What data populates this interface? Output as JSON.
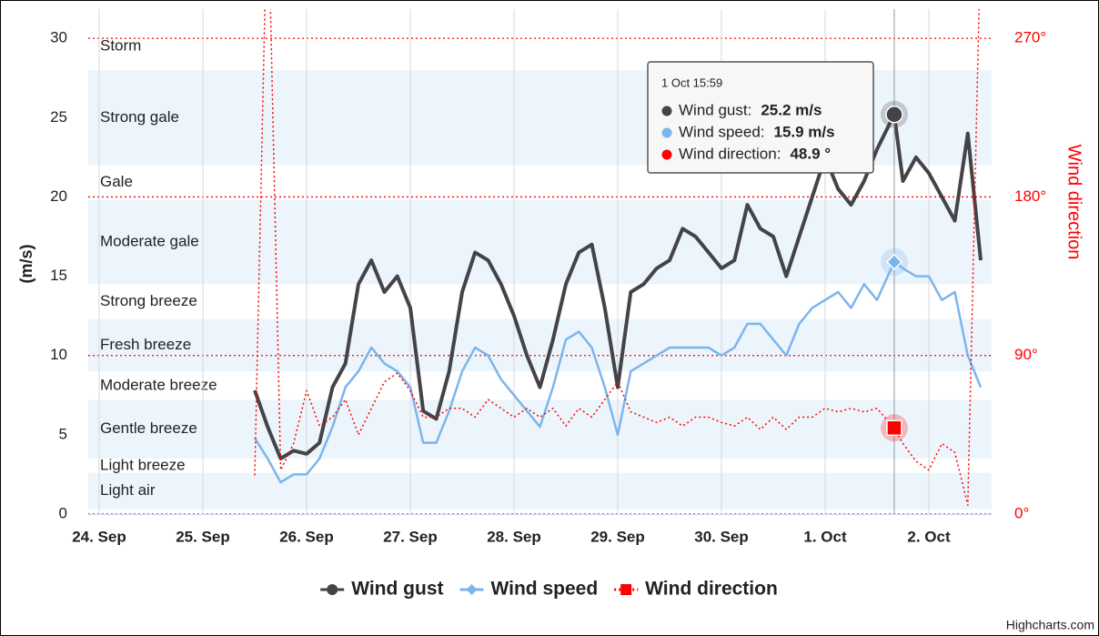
{
  "chart_data": {
    "type": "line",
    "y_title": "(m/s)",
    "y2_title": "Wind direction",
    "credits": "Highcharts.com",
    "xlim": [
      -0.105,
      8.605
    ],
    "xticks": [
      {
        "value": 0,
        "label": "24. Sep"
      },
      {
        "value": 1,
        "label": "25. Sep"
      },
      {
        "value": 2,
        "label": "26. Sep"
      },
      {
        "value": 3,
        "label": "27. Sep"
      },
      {
        "value": 4,
        "label": "28. Sep"
      },
      {
        "value": 5,
        "label": "29. Sep"
      },
      {
        "value": 6,
        "label": "30. Sep"
      },
      {
        "value": 7,
        "label": "1. Oct"
      },
      {
        "value": 8,
        "label": "2. Oct"
      }
    ],
    "ylim": [
      0,
      31.5
    ],
    "yticks": [
      0,
      5,
      10,
      15,
      20,
      25,
      30
    ],
    "y2lim": [
      0,
      283.5
    ],
    "y2ticks": [
      {
        "value": 0,
        "label": "0°"
      },
      {
        "value": 90,
        "label": "90°"
      },
      {
        "value": 180,
        "label": "180°"
      },
      {
        "value": 270,
        "label": "270°"
      }
    ],
    "grid": true,
    "bands": [
      {
        "label": "Light air",
        "from": 0.3,
        "to": 2.6,
        "color": "#ecf5fb"
      },
      {
        "label": "Light breeze",
        "from": 2.6,
        "to": 3.5,
        "color": "#ffffff"
      },
      {
        "label": "Gentle breeze",
        "from": 3.5,
        "to": 7.2,
        "color": "#ecf5fb"
      },
      {
        "label": "Moderate breeze",
        "from": 7.2,
        "to": 9,
        "color": "#ffffff"
      },
      {
        "label": "Fresh breeze",
        "from": 9,
        "to": 12.3,
        "color": "#ecf5fb"
      },
      {
        "label": "Strong breeze",
        "from": 12.3,
        "to": 14.5,
        "color": "#ffffff"
      },
      {
        "label": "Moderate gale",
        "from": 14.5,
        "to": 19.8,
        "color": "#ecf5fb"
      },
      {
        "label": "Gale",
        "from": 19.8,
        "to": 22,
        "color": "#ffffff"
      },
      {
        "label": "Strong gale",
        "from": 22,
        "to": 28,
        "color": "#ecf5fb"
      },
      {
        "label": "Storm",
        "from": 28,
        "to": 31,
        "color": "#ffffff"
      }
    ],
    "x": [
      1.5,
      1.625,
      1.75,
      1.875,
      2.0,
      2.125,
      2.25,
      2.375,
      2.5,
      2.625,
      2.75,
      2.875,
      3.0,
      3.125,
      3.25,
      3.375,
      3.5,
      3.625,
      3.75,
      3.875,
      4.0,
      4.125,
      4.25,
      4.375,
      4.5,
      4.625,
      4.75,
      4.875,
      5.0,
      5.125,
      5.25,
      5.375,
      5.5,
      5.625,
      5.75,
      5.875,
      6.0,
      6.125,
      6.25,
      6.375,
      6.5,
      6.625,
      6.75,
      6.875,
      7.0,
      7.125,
      7.25,
      7.375,
      7.5,
      7.666,
      7.75,
      7.875,
      8.0,
      8.125,
      8.25,
      8.375,
      8.5
    ],
    "series": [
      {
        "name": "Wind gust",
        "color": "#434348",
        "marker": "circle",
        "values": [
          7.8,
          5.5,
          3.5,
          4,
          3.8,
          4.5,
          8,
          9.5,
          14.5,
          16,
          14,
          15,
          13,
          6.5,
          6,
          9,
          14,
          16.5,
          16,
          14.5,
          12.5,
          10,
          8,
          11,
          14.5,
          16.5,
          17,
          13,
          8,
          14,
          14.5,
          15.5,
          16,
          18,
          17.5,
          16.5,
          15.5,
          16,
          19.5,
          18,
          17.5,
          15,
          17.5,
          20,
          22.5,
          20.5,
          19.5,
          21,
          23,
          25.2,
          21,
          22.5,
          21.5,
          20,
          18.5,
          24,
          16
        ]
      },
      {
        "name": "Wind speed",
        "color": "#7cb5ec",
        "marker": "diamond",
        "values": [
          4.8,
          3.5,
          2,
          2.5,
          2.5,
          3.5,
          5.5,
          8,
          9,
          10.5,
          9.5,
          9,
          8,
          4.5,
          4.5,
          6.5,
          9,
          10.5,
          10,
          8.5,
          7.5,
          6.5,
          5.5,
          8,
          11,
          11.5,
          10.5,
          8,
          5,
          9,
          9.5,
          10,
          10.5,
          10.5,
          10.5,
          10.5,
          10,
          10.5,
          12,
          12,
          11,
          10,
          12,
          13,
          13.5,
          14,
          13,
          14.5,
          13.5,
          15.9,
          15.5,
          15,
          15,
          13.5,
          14,
          10,
          8
        ]
      },
      {
        "name": "Wind direction",
        "color": "#ff0000",
        "marker": "square",
        "axis": "y2",
        "dotted": true,
        "values": [
          22,
          360,
          25,
          40,
          70,
          50,
          55,
          65,
          45,
          60,
          75,
          80,
          70,
          55,
          55,
          60,
          60,
          55,
          65,
          60,
          55,
          60,
          55,
          60,
          50,
          60,
          55,
          65,
          75,
          58,
          55,
          52,
          55,
          50,
          55,
          55,
          52,
          50,
          55,
          48,
          55,
          48,
          55,
          55,
          60,
          58,
          60,
          58,
          60,
          48.9,
          40,
          30,
          25,
          40,
          35,
          5,
          330
        ]
      }
    ],
    "tooltip": {
      "index": 49,
      "header": "1 Oct 15:59",
      "rows": [
        {
          "label": "Wind gust:",
          "value": "25.2 m/s"
        },
        {
          "label": "Wind speed:",
          "value": "15.9 m/s"
        },
        {
          "label": "Wind direction:",
          "value": "48.9 °"
        }
      ]
    }
  }
}
